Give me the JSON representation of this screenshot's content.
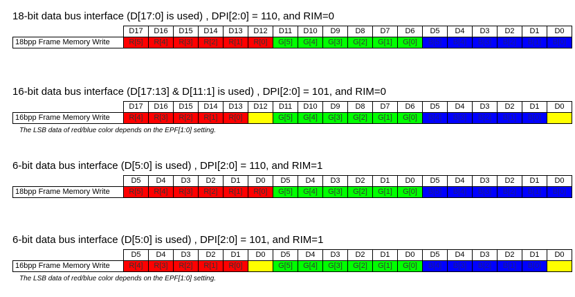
{
  "sections": [
    {
      "title": "18-bit data bus interface (D[17:0] is used) , DPI[2:0] = 110, and RIM=0",
      "columns": [
        "D17",
        "D16",
        "D15",
        "D14",
        "D13",
        "D12",
        "D11",
        "D10",
        "D9",
        "D8",
        "D7",
        "D6",
        "D5",
        "D4",
        "D3",
        "D2",
        "D1",
        "D0"
      ],
      "row_label": "18bpp Frame Memory Write",
      "cells": [
        {
          "text": "R[5]",
          "color": "#ff0000"
        },
        {
          "text": "R[4]",
          "color": "#ff0000"
        },
        {
          "text": "R[3]",
          "color": "#ff0000"
        },
        {
          "text": "R[2]",
          "color": "#ff0000"
        },
        {
          "text": "R[1]",
          "color": "#ff0000"
        },
        {
          "text": "R[0]",
          "color": "#ff0000"
        },
        {
          "text": "G[5]",
          "color": "#00ff00"
        },
        {
          "text": "G[4]",
          "color": "#00ff00"
        },
        {
          "text": "G[3]",
          "color": "#00ff00"
        },
        {
          "text": "G[2]",
          "color": "#00ff00"
        },
        {
          "text": "G[1]",
          "color": "#00ff00"
        },
        {
          "text": "G[0]",
          "color": "#00ff00"
        },
        {
          "text": "B[5]",
          "color": "#0000ff"
        },
        {
          "text": "B[4]",
          "color": "#0000ff"
        },
        {
          "text": "B[3]",
          "color": "#0000ff"
        },
        {
          "text": "B[2]",
          "color": "#0000ff"
        },
        {
          "text": "B[1]",
          "color": "#0000ff"
        },
        {
          "text": "B[0]",
          "color": "#0000ff"
        }
      ]
    },
    {
      "title": "16-bit data bus interface (D[17:13] & D[11:1] is used) , DPI[2:0] = 101, and RIM=0",
      "columns": [
        "D17",
        "D16",
        "D15",
        "D14",
        "D13",
        "D12",
        "D11",
        "D10",
        "D9",
        "D8",
        "D7",
        "D6",
        "D5",
        "D4",
        "D3",
        "D2",
        "D1",
        "D0"
      ],
      "row_label": "16bpp Frame Memory Write",
      "cells": [
        {
          "text": "R[4]",
          "color": "#ff0000"
        },
        {
          "text": "R[3]",
          "color": "#ff0000"
        },
        {
          "text": "R[2]",
          "color": "#ff0000"
        },
        {
          "text": "R[1]",
          "color": "#ff0000"
        },
        {
          "text": "R[0]",
          "color": "#ff0000"
        },
        {
          "color": "#ffff00"
        },
        {
          "text": "G[5]",
          "color": "#00ff00"
        },
        {
          "text": "G[4]",
          "color": "#00ff00"
        },
        {
          "text": "G[3]",
          "color": "#00ff00"
        },
        {
          "text": "G[2]",
          "color": "#00ff00"
        },
        {
          "text": "G[1]",
          "color": "#00ff00"
        },
        {
          "text": "G[0]",
          "color": "#00ff00"
        },
        {
          "text": "B[4]",
          "color": "#0000ff"
        },
        {
          "text": "B[3]",
          "color": "#0000ff"
        },
        {
          "text": "B[2]",
          "color": "#0000ff"
        },
        {
          "text": "B[1]",
          "color": "#0000ff"
        },
        {
          "text": "B[0]",
          "color": "#0000ff"
        },
        {
          "color": "#ffff00"
        }
      ],
      "note": "The LSB data of red/blue color depends on the EPF[1:0] setting."
    },
    {
      "title": "6-bit data bus interface (D[5:0] is used) , DPI[2:0] = 110, and RIM=1",
      "columns": [
        "D5",
        "D4",
        "D3",
        "D2",
        "D1",
        "D0",
        "D5",
        "D4",
        "D3",
        "D2",
        "D1",
        "D0",
        "D5",
        "D4",
        "D3",
        "D2",
        "D1",
        "D0"
      ],
      "row_label": "18bpp Frame Memory Write",
      "cells": [
        {
          "text": "R[5]",
          "color": "#ff0000"
        },
        {
          "text": "R[4]",
          "color": "#ff0000"
        },
        {
          "text": "R[3]",
          "color": "#ff0000"
        },
        {
          "text": "R[2]",
          "color": "#ff0000"
        },
        {
          "text": "R[1]",
          "color": "#ff0000"
        },
        {
          "text": "R[0]",
          "color": "#ff0000"
        },
        {
          "text": "G[5]",
          "color": "#00ff00"
        },
        {
          "text": "G[4]",
          "color": "#00ff00"
        },
        {
          "text": "G[3]",
          "color": "#00ff00"
        },
        {
          "text": "G[2]",
          "color": "#00ff00"
        },
        {
          "text": "G[1]",
          "color": "#00ff00"
        },
        {
          "text": "G[0]",
          "color": "#00ff00"
        },
        {
          "text": "B[5]",
          "color": "#0000ff"
        },
        {
          "text": "B[4]",
          "color": "#0000ff"
        },
        {
          "text": "B[3]",
          "color": "#0000ff"
        },
        {
          "text": "B[2]",
          "color": "#0000ff"
        },
        {
          "text": "B[1]",
          "color": "#0000ff"
        },
        {
          "text": "B[0]",
          "color": "#0000ff"
        }
      ]
    },
    {
      "title": "6-bit data bus interface (D[5:0] is used) , DPI[2:0] = 101, and RIM=1",
      "columns": [
        "D5",
        "D4",
        "D3",
        "D2",
        "D1",
        "D0",
        "D5",
        "D4",
        "D3",
        "D2",
        "D1",
        "D0",
        "D5",
        "D4",
        "D3",
        "D2",
        "D1",
        "D0"
      ],
      "row_label": "16bpp Frame Memory Write",
      "cells": [
        {
          "text": "R[4]",
          "color": "#ff0000"
        },
        {
          "text": "R[3]",
          "color": "#ff0000"
        },
        {
          "text": "R[2]",
          "color": "#ff0000"
        },
        {
          "text": "R[1]",
          "color": "#ff0000"
        },
        {
          "text": "R[0]",
          "color": "#ff0000"
        },
        {
          "color": "#ffff00"
        },
        {
          "text": "G[5]",
          "color": "#00ff00"
        },
        {
          "text": "G[4]",
          "color": "#00ff00"
        },
        {
          "text": "G[3]",
          "color": "#00ff00"
        },
        {
          "text": "G[2]",
          "color": "#00ff00"
        },
        {
          "text": "G[1]",
          "color": "#00ff00"
        },
        {
          "text": "G[0]",
          "color": "#00ff00"
        },
        {
          "text": "B[4]",
          "color": "#0000ff"
        },
        {
          "text": "B[3]",
          "color": "#0000ff"
        },
        {
          "text": "B[2]",
          "color": "#0000ff"
        },
        {
          "text": "B[1]",
          "color": "#0000ff"
        },
        {
          "text": "B[0]",
          "color": "#0000ff"
        },
        {
          "color": "#ffff00"
        }
      ],
      "note": "The LSB data of red/blue color depends on the EPF[1:0] setting."
    }
  ]
}
